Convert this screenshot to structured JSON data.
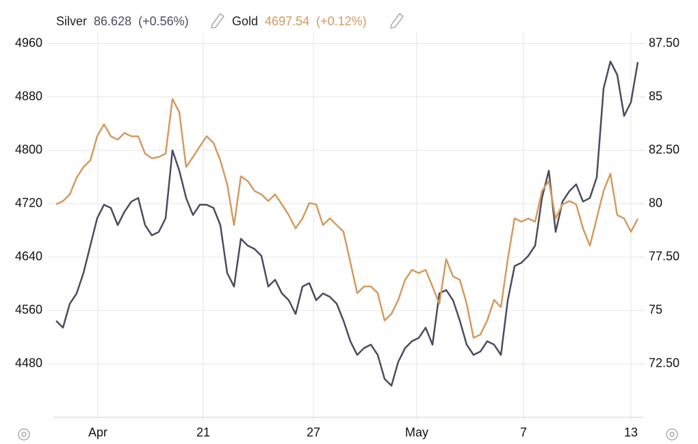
{
  "chart_data": {
    "type": "line",
    "x": [
      0,
      1,
      2,
      3,
      4,
      5,
      6,
      7,
      8,
      9,
      10,
      11,
      12,
      13,
      14,
      15,
      16,
      17,
      18,
      19,
      20,
      21,
      22,
      23,
      24,
      25,
      26,
      27,
      28,
      29,
      30,
      31,
      32,
      33,
      34,
      35,
      36,
      37,
      38,
      39,
      40,
      41,
      42,
      43,
      44,
      45,
      46,
      47,
      48,
      49,
      50,
      51,
      52,
      53,
      54,
      55,
      56,
      57,
      58,
      59,
      60,
      61,
      62,
      63,
      64,
      65,
      66,
      67,
      68,
      69,
      70,
      71,
      72,
      73,
      74,
      75,
      76,
      77,
      78,
      79,
      80,
      81,
      82,
      83,
      84,
      85
    ],
    "xlim": [
      0,
      85
    ],
    "xticks": [
      {
        "value": 6.1,
        "label": "Apr"
      },
      {
        "value": 21.5,
        "label": "21"
      },
      {
        "value": 37.6,
        "label": "27"
      },
      {
        "value": 52.7,
        "label": "May"
      },
      {
        "value": 68.3,
        "label": "7"
      },
      {
        "value": 84,
        "label": "13"
      }
    ],
    "ylim": [
      4400,
      4976
    ],
    "yticks": [
      4480,
      4560,
      4640,
      4720,
      4800,
      4880,
      4960
    ],
    "y2lim": [
      70,
      88
    ],
    "y2ticks": [
      {
        "value": 72.5,
        "label": "72.50"
      },
      75,
      {
        "value": 77.5,
        "label": "77.50"
      },
      80,
      {
        "value": 82.5,
        "label": "82.50"
      },
      85,
      {
        "value": 87.5,
        "label": "87.50"
      }
    ],
    "grid": true,
    "series": [
      {
        "name": "Silver",
        "color": "#4b4b5f",
        "axis": "y2",
        "last_label": "86.628",
        "change_label": "(+0.56%)",
        "values": [
          74.52,
          74.2,
          75.32,
          75.8,
          76.76,
          78.04,
          79.32,
          79.95,
          79.8,
          79.0,
          79.63,
          80.1,
          80.27,
          79.0,
          78.52,
          78.68,
          79.32,
          82.5,
          81.55,
          80.27,
          79.47,
          79.95,
          79.95,
          79.8,
          79.0,
          76.76,
          76.12,
          78.36,
          78.04,
          77.88,
          77.56,
          76.12,
          76.44,
          75.8,
          75.48,
          74.84,
          76.12,
          76.28,
          75.48,
          75.8,
          75.64,
          75.32,
          74.52,
          73.56,
          72.92,
          73.24,
          73.4,
          72.92,
          71.8,
          71.48,
          72.6,
          73.24,
          73.56,
          73.72,
          74.2,
          73.4,
          75.8,
          75.96,
          75.48,
          74.52,
          73.4,
          72.92,
          73.08,
          73.56,
          73.4,
          72.92,
          75.48,
          77.08,
          77.24,
          77.56,
          78.04,
          80.27,
          81.55,
          78.68,
          80.1,
          80.59,
          80.91,
          80.1,
          80.27,
          81.23,
          85.39,
          86.66,
          86.03,
          84.11,
          84.75,
          86.628
        ]
      },
      {
        "name": "Gold",
        "color": "#d49a5e",
        "last_label": "4697.54",
        "change_label": "(+0.12%)",
        "values": [
          4719,
          4724,
          4734,
          4759,
          4775,
          4785,
          4821,
          4839,
          4821,
          4816,
          4826,
          4821,
          4821,
          4795,
          4788,
          4790,
          4795,
          4877,
          4857,
          4775,
          4790,
          4806,
          4821,
          4811,
          4785,
          4749,
          4688,
          4761,
          4754,
          4739,
          4734,
          4724,
          4734,
          4719,
          4703,
          4683,
          4698,
          4721,
          4719,
          4688,
          4698,
          4688,
          4678,
          4632,
          4586,
          4596,
          4596,
          4586,
          4545,
          4555,
          4576,
          4606,
          4621,
          4616,
          4621,
          4596,
          4570,
          4637,
          4611,
          4606,
          4570,
          4519,
          4524,
          4545,
          4576,
          4565,
          4637,
          4698,
          4693,
          4698,
          4693,
          4739,
          4754,
          4698,
          4719,
          4724,
          4719,
          4683,
          4657,
          4698,
          4739,
          4765,
          4703,
          4698,
          4678,
          4697.54
        ]
      }
    ]
  }
}
